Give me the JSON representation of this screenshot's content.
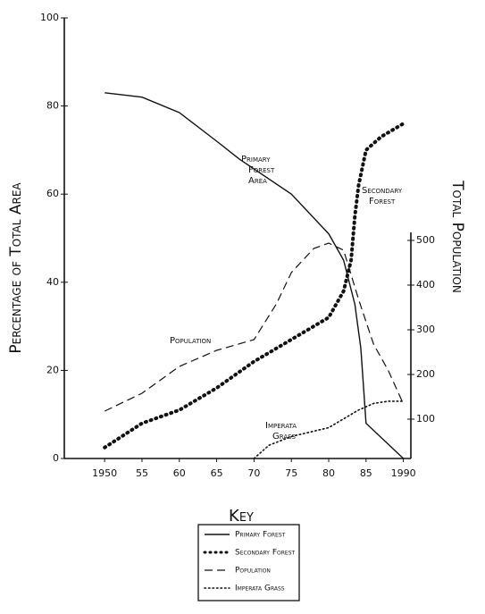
{
  "chart_data": {
    "type": "line",
    "xlim": [
      1944.6,
      1991
    ],
    "xticks": [
      1950,
      {
        "value": 1955,
        "label": "55"
      },
      {
        "value": 1960,
        "label": "60"
      },
      {
        "value": 1965,
        "label": "65"
      },
      {
        "value": 1970,
        "label": "70"
      },
      {
        "value": 1975,
        "label": "75"
      },
      {
        "value": 1980,
        "label": "80"
      },
      {
        "value": 1985,
        "label": "85"
      },
      1990
    ],
    "ylim": [
      0,
      100
    ],
    "yticks": [
      0,
      20,
      40,
      60,
      80,
      100
    ],
    "y2lim": [
      12,
      998
    ],
    "y2ticks": [
      100,
      200,
      300,
      400,
      500
    ],
    "y_label": "Percentage of Total Area",
    "y2_label": "Total Population",
    "legend_title": "Key",
    "series": [
      {
        "name": "Primary Forest",
        "color": "#111111",
        "style": "solid",
        "annotation": [
          "Primary",
          "Forest",
          "Area"
        ],
        "x": [
          1950,
          1955,
          1960,
          1965,
          1968,
          1975,
          1980,
          1982,
          1983.5,
          1984.3,
          1985,
          1990
        ],
        "values": [
          83,
          82,
          78.5,
          72,
          68,
          60,
          51,
          45,
          35,
          25,
          8,
          0
        ]
      },
      {
        "name": "Secondary Forest",
        "color": "#111111",
        "style": "heavy-dotted",
        "annotation": [
          "Secondary",
          "Forest"
        ],
        "x": [
          1950,
          1955,
          1960,
          1965,
          1970,
          1972,
          1975,
          1980,
          1982,
          1983,
          1983.5,
          1984,
          1985,
          1987,
          1990
        ],
        "values": [
          2.5,
          8,
          11,
          16,
          22,
          24,
          27,
          32,
          38,
          45,
          55,
          62,
          70,
          73,
          76
        ]
      },
      {
        "name": "Population",
        "color": "#111111",
        "style": "dashed",
        "axis": "y2",
        "annotation": [
          "Population"
        ],
        "x": [
          1950,
          1955,
          1960,
          1965,
          1970,
          1973,
          1975,
          1978,
          1980,
          1982,
          1984,
          1986,
          1988,
          1990
        ],
        "values": [
          118,
          158,
          218,
          254,
          278,
          358,
          428,
          482,
          494,
          478,
          368,
          268,
          208,
          134
        ]
      },
      {
        "name": "Imperata Grass",
        "color": "#111111",
        "style": "dotted",
        "annotation": [
          "Imperata",
          "Grass"
        ],
        "x": [
          1970,
          1972,
          1975,
          1980,
          1982,
          1984,
          1986,
          1988,
          1990
        ],
        "values": [
          0,
          3,
          5,
          7,
          9,
          11,
          12.5,
          13,
          13
        ]
      }
    ]
  }
}
